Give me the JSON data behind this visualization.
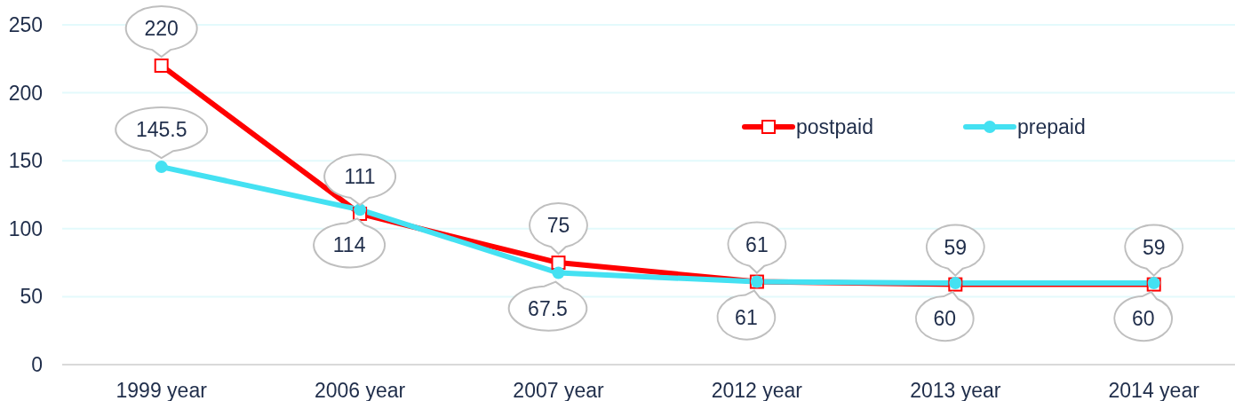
{
  "chart_data": {
    "type": "line",
    "categories": [
      "1999 year",
      "2006 year",
      "2007 year",
      "2012 year",
      "2013 year",
      "2014 year"
    ],
    "series": [
      {
        "name": "postpaid",
        "color": "#ff0000",
        "marker": "square",
        "values": [
          220,
          111,
          75,
          61,
          59,
          59
        ]
      },
      {
        "name": "prepaid",
        "color": "#44e1f2",
        "marker": "circle",
        "values": [
          145.5,
          114,
          67.5,
          61,
          60,
          60
        ]
      }
    ],
    "ylim": [
      0,
      250
    ],
    "yticks": [
      0,
      50,
      100,
      150,
      200,
      250
    ],
    "grid": "y",
    "legend": "top right",
    "data_labels": true,
    "line_style": "solid"
  }
}
